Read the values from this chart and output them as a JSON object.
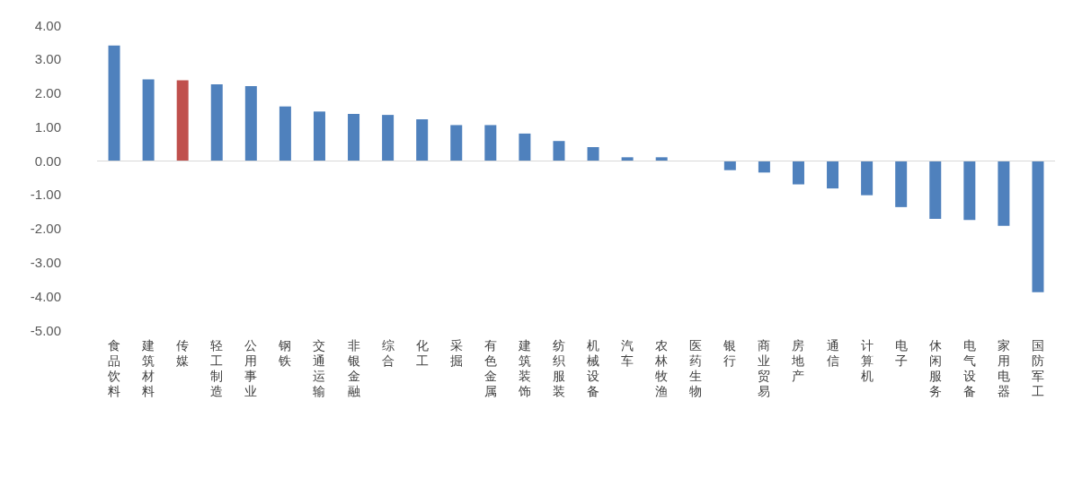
{
  "chart_data": {
    "type": "bar",
    "categories": [
      "食品饮料",
      "建筑材料",
      "传媒",
      "轻工制造",
      "公用事业",
      "钢铁",
      "交通运输",
      "非银金融",
      "综合",
      "化工",
      "采掘",
      "有色金属",
      "建筑装饰",
      "纺织服装",
      "机械设备",
      "汽车",
      "农林牧渔",
      "医药生物",
      "银行",
      "商业贸易",
      "房地产",
      "通信",
      "计算机",
      "电子",
      "休闲服务",
      "电气设备",
      "家用电器",
      "国防军工"
    ],
    "values": [
      3.4,
      2.4,
      2.37,
      2.25,
      2.2,
      1.6,
      1.45,
      1.38,
      1.35,
      1.22,
      1.05,
      1.05,
      0.8,
      0.58,
      0.4,
      0.1,
      0.1,
      0,
      -0.28,
      -0.35,
      -0.7,
      -0.82,
      -1.02,
      -1.37,
      -1.72,
      -1.75,
      -1.92,
      -3.88
    ],
    "colors": [
      "#4f81bd",
      "#4f81bd",
      "#c0504d",
      "#4f81bd",
      "#4f81bd",
      "#4f81bd",
      "#4f81bd",
      "#4f81bd",
      "#4f81bd",
      "#4f81bd",
      "#4f81bd",
      "#4f81bd",
      "#4f81bd",
      "#4f81bd",
      "#4f81bd",
      "#4f81bd",
      "#4f81bd",
      "#4f81bd",
      "#4f81bd",
      "#4f81bd",
      "#4f81bd",
      "#4f81bd",
      "#4f81bd",
      "#4f81bd",
      "#4f81bd",
      "#4f81bd",
      "#4f81bd",
      "#4f81bd"
    ],
    "ylim": [
      -5,
      4
    ],
    "yticks": [
      {
        "value": 4,
        "label": "4.00"
      },
      {
        "value": 3,
        "label": "3.00"
      },
      {
        "value": 2,
        "label": "2.00"
      },
      {
        "value": 1,
        "label": "1.00"
      },
      {
        "value": 0,
        "label": "0.00"
      },
      {
        "value": -1,
        "label": "-1.00"
      },
      {
        "value": -2,
        "label": "-2.00"
      },
      {
        "value": -3,
        "label": "-3.00"
      },
      {
        "value": -4,
        "label": "-4.00"
      },
      {
        "value": -5,
        "label": "-5.00"
      }
    ],
    "ref_lines": [
      {
        "axis": "y",
        "value": 0,
        "color": "#d9d9d9"
      }
    ],
    "grid": false
  }
}
